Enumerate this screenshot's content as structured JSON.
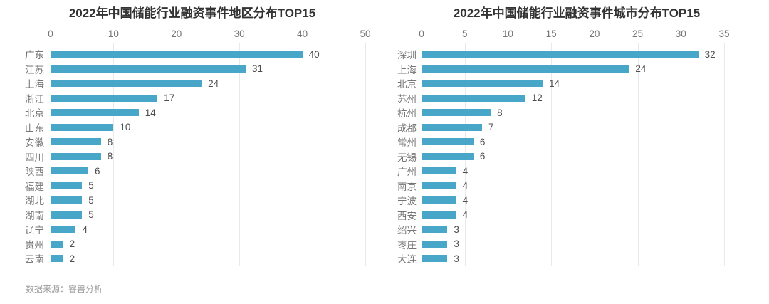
{
  "page": {
    "source_note": "数据来源：睿兽分析",
    "background": "#ffffff"
  },
  "colors": {
    "bar": "#48a6c9",
    "title": "#333333",
    "axis_label": "#757575",
    "category_label": "#757575",
    "value_label": "#4d4d4d",
    "gridline": "#e9e9e9",
    "source_note": "#9c9c9c"
  },
  "chart_data": [
    {
      "type": "bar",
      "orientation": "horizontal",
      "title": "2022年中国储能行业融资事件地区分布TOP15",
      "categories": [
        "广东",
        "江苏",
        "上海",
        "浙江",
        "北京",
        "山东",
        "安徽",
        "四川",
        "陕西",
        "福建",
        "湖北",
        "湖南",
        "辽宁",
        "贵州",
        "云南"
      ],
      "values": [
        40,
        31,
        24,
        17,
        14,
        10,
        8,
        8,
        6,
        5,
        5,
        5,
        4,
        2,
        2
      ],
      "xlim": [
        0,
        50
      ],
      "xticks": [
        0,
        10,
        20,
        30,
        40,
        50
      ],
      "axis_position": "top",
      "grid": true,
      "legend": false,
      "bar_color": "#48a6c9"
    },
    {
      "type": "bar",
      "orientation": "horizontal",
      "title": "2022年中国储能行业融资事件城市分布TOP15",
      "categories": [
        "深圳",
        "上海",
        "北京",
        "苏州",
        "杭州",
        "成都",
        "常州",
        "无锡",
        "广州",
        "南京",
        "宁波",
        "西安",
        "绍兴",
        "枣庄",
        "大连"
      ],
      "values": [
        32,
        24,
        14,
        12,
        8,
        7,
        6,
        6,
        4,
        4,
        4,
        4,
        3,
        3,
        3
      ],
      "xlim": [
        0,
        35
      ],
      "xticks": [
        0,
        5,
        10,
        15,
        20,
        25,
        30,
        35
      ],
      "axis_position": "top",
      "grid": true,
      "legend": false,
      "bar_color": "#48a6c9"
    }
  ]
}
